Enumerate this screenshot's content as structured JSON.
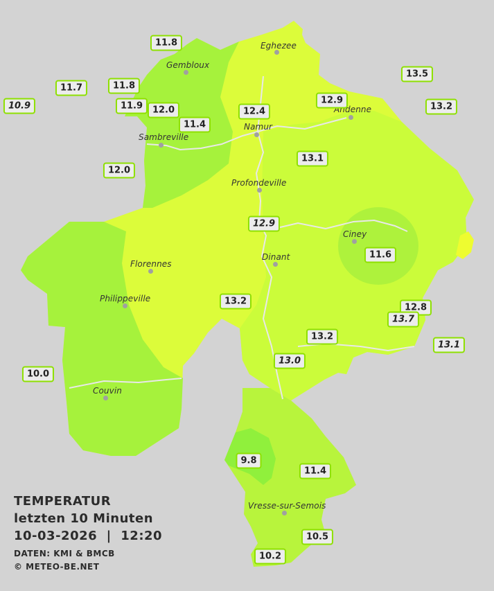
{
  "legend": {
    "title": "TEMPERATUR",
    "subtitle": "letzten 10 Minuten",
    "datetime": "10-03-2026  |  12:20",
    "source": "DATEN: KMI & BMCB",
    "copyright": "© METEO-BE.NET"
  },
  "colors": {
    "background": "#d3d3d3",
    "region_main": "#cdfd3e",
    "region_warm": "#dcfc3a",
    "region_cool": "#a6f23c",
    "region_cold": "#88f03c",
    "label_border": "#8ee000",
    "river": "#e6e6e6"
  },
  "cities": [
    {
      "name": "Eghezee"
    },
    {
      "name": "Gembloux"
    },
    {
      "name": "Andenne"
    },
    {
      "name": "Namur"
    },
    {
      "name": "Sambreville"
    },
    {
      "name": "Profondeville"
    },
    {
      "name": "Ciney"
    },
    {
      "name": "Florennes"
    },
    {
      "name": "Dinant"
    },
    {
      "name": "Philippeville"
    },
    {
      "name": "Couvin"
    },
    {
      "name": "Vresse-sur-Semois"
    }
  ],
  "stations": [
    {
      "value": "11.8",
      "italic": false
    },
    {
      "value": "11.7",
      "italic": false
    },
    {
      "value": "11.8",
      "italic": false
    },
    {
      "value": "10.9",
      "italic": true
    },
    {
      "value": "11.9",
      "italic": false
    },
    {
      "value": "12.0",
      "italic": false
    },
    {
      "value": "11.4",
      "italic": false
    },
    {
      "value": "12.4",
      "italic": false
    },
    {
      "value": "12.9",
      "italic": false
    },
    {
      "value": "13.5",
      "italic": false
    },
    {
      "value": "13.2",
      "italic": false
    },
    {
      "value": "13.1",
      "italic": false
    },
    {
      "value": "12.0",
      "italic": false
    },
    {
      "value": "12.9",
      "italic": true
    },
    {
      "value": "11.6",
      "italic": false
    },
    {
      "value": "13.2",
      "italic": false
    },
    {
      "value": "12.8",
      "italic": false
    },
    {
      "value": "13.7",
      "italic": true
    },
    {
      "value": "13.2",
      "italic": false
    },
    {
      "value": "13.1",
      "italic": true
    },
    {
      "value": "13.0",
      "italic": true
    },
    {
      "value": "10.0",
      "italic": false
    },
    {
      "value": "9.8",
      "italic": false
    },
    {
      "value": "11.4",
      "italic": false
    },
    {
      "value": "10.5",
      "italic": false
    },
    {
      "value": "10.2",
      "italic": false
    }
  ]
}
